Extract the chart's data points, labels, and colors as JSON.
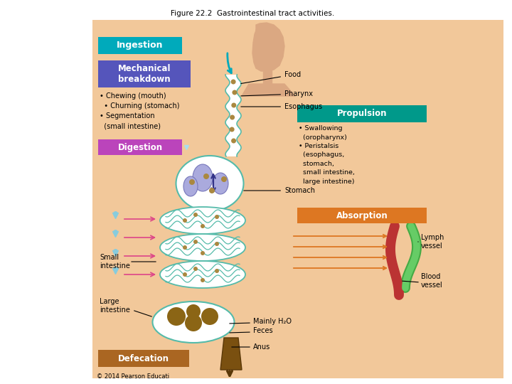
{
  "title": "Figure 22.2  Gastrointestinal tract activities.",
  "background_color": "#F2C89A",
  "white_bg": "#FFFFFF",
  "ingestion_color": "#00AABB",
  "mechanical_color": "#5555BB",
  "digestion_color": "#BB44BB",
  "propulsion_color": "#00998A",
  "absorption_color": "#DD7722",
  "defecation_color": "#AA6622",
  "ingestion_label": "Ingestion",
  "mechanical_label": "Mechanical\nbreakdown",
  "mechanical_bullets": "• Chewing (mouth)\n  • Churning (stomach)\n• Segmentation\n  (small intestine)",
  "digestion_label": "Digestion",
  "propulsion_label": "Propulsion",
  "propulsion_bullets": "• Swallowing\n  (oropharynx)\n• Peristalsis\n  (esophagus,\n  stomach,\n  small intestine,\n  large intestine)",
  "absorption_label": "Absorption",
  "defecation_label": "Defecation",
  "food_label": "Food",
  "pharynx_label": "Pharynx",
  "esophagus_label": "Esophagus",
  "stomach_label": "Stomach",
  "small_intestine_label": "Small\nintestine",
  "large_intestine_label": "Large\nintestine",
  "lymph_label": "Lymph\nvessel",
  "blood_label": "Blood\nvessel",
  "h2o_label": "Mainly H₂O",
  "feces_label": "Feces",
  "anus_label": "Anus",
  "copyright": "© 2014 Pearson Educati",
  "skin_color": "#DBA882",
  "gi_teal": "#55BBAA",
  "lymph_color": "#44AA44",
  "blood_color": "#BB3333"
}
